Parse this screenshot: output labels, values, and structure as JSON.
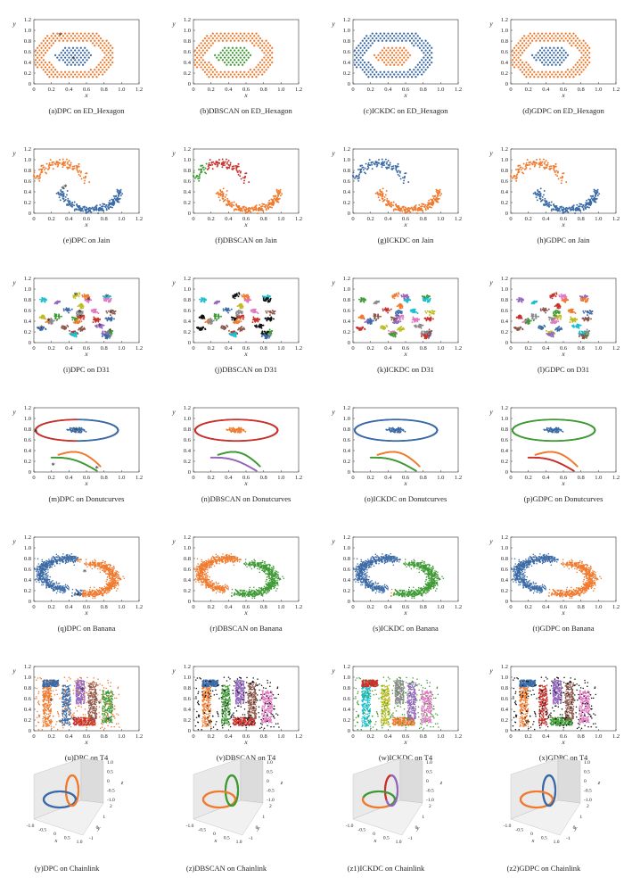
{
  "figure": {
    "rows": [
      {
        "dataset": "ED_Hexagon",
        "shape": "hexagon"
      },
      {
        "dataset": "Jain",
        "shape": "jain"
      },
      {
        "dataset": "D31",
        "shape": "d31"
      },
      {
        "dataset": "Donutcurves",
        "shape": "donut"
      },
      {
        "dataset": "Banana",
        "shape": "banana"
      },
      {
        "dataset": "T4",
        "shape": "t4"
      },
      {
        "dataset": "Chainlink",
        "shape": "chain"
      }
    ],
    "methods": [
      "DPC",
      "DBSCAN",
      "ICKDC",
      "GDPC"
    ],
    "axis_2d": {
      "xlabel": "x",
      "ylabel": "y",
      "xticks": [
        "0",
        "0.2",
        "0.4",
        "0.6",
        "0.8",
        "1.0",
        "1.2"
      ],
      "yticks": [
        "0",
        "0.2",
        "0.4",
        "0.6",
        "0.8",
        "1.0",
        "1.2"
      ],
      "range": [
        0,
        1.2
      ]
    },
    "axis_3d": {
      "xlabel": "x",
      "ylabel": "y",
      "zlabel": "z",
      "xticks": [
        "-1.0",
        "-0.5",
        "0",
        "0.5",
        "1.0"
      ],
      "yticks": [
        "-1",
        "0",
        "1",
        "2"
      ],
      "zticks": [
        "1.0",
        "0.5",
        "0",
        "-0.5",
        "-1.0"
      ]
    },
    "colors": {
      "blue": "#3b6aa6",
      "orange": "#f07a2e",
      "green": "#3f9a35",
      "red": "#c8322c",
      "purple": "#9467bd",
      "brown": "#8c564b",
      "pink": "#e377c2",
      "gray": "#8a8a8a",
      "olive": "#bcbd22",
      "cyan": "#17becf",
      "black": "#111111"
    }
  },
  "chart_data": [
    {
      "type": "scatter",
      "caption": "(a)DPC on ED_Hexagon",
      "dataset": "ED_Hexagon",
      "method": "DPC",
      "clusters": 2,
      "xlim": [
        0,
        1.2
      ],
      "ylim": [
        0,
        1.2
      ]
    },
    {
      "type": "scatter",
      "caption": "(b)DBSCAN on ED_Hexagon",
      "dataset": "ED_Hexagon",
      "method": "DBSCAN",
      "clusters": 2,
      "xlim": [
        0,
        1.2
      ],
      "ylim": [
        0,
        1.2
      ]
    },
    {
      "type": "scatter",
      "caption": "(c)ICKDC on ED_Hexagon",
      "dataset": "ED_Hexagon",
      "method": "ICKDC",
      "clusters": 2,
      "xlim": [
        0,
        1.2
      ],
      "ylim": [
        0,
        1.2
      ]
    },
    {
      "type": "scatter",
      "caption": "(d)GDPC on ED_Hexagon",
      "dataset": "ED_Hexagon",
      "method": "GDPC",
      "clusters": 2,
      "xlim": [
        0,
        1.2
      ],
      "ylim": [
        0,
        1.2
      ]
    },
    {
      "type": "scatter",
      "caption": "(e)DPC on Jain",
      "dataset": "Jain",
      "method": "DPC",
      "clusters": 2,
      "xlim": [
        0,
        1.2
      ],
      "ylim": [
        0,
        1.2
      ]
    },
    {
      "type": "scatter",
      "caption": "(f)DBSCAN on Jain",
      "dataset": "Jain",
      "method": "DBSCAN",
      "clusters": 3,
      "xlim": [
        0,
        1.2
      ],
      "ylim": [
        0,
        1.2
      ]
    },
    {
      "type": "scatter",
      "caption": "(g)ICKDC on Jain",
      "dataset": "Jain",
      "method": "ICKDC",
      "clusters": 2,
      "xlim": [
        0,
        1.2
      ],
      "ylim": [
        0,
        1.2
      ]
    },
    {
      "type": "scatter",
      "caption": "(h)GDPC on Jain",
      "dataset": "Jain",
      "method": "GDPC",
      "clusters": 2,
      "xlim": [
        0,
        1.2
      ],
      "ylim": [
        0,
        1.2
      ]
    },
    {
      "type": "scatter",
      "caption": "(i)DPC on D31",
      "dataset": "D31",
      "method": "DPC",
      "clusters": 31,
      "xlim": [
        0,
        1.2
      ],
      "ylim": [
        0,
        1.2
      ]
    },
    {
      "type": "scatter",
      "caption": "(j)DBSCAN on D31",
      "dataset": "D31",
      "method": "DBSCAN",
      "clusters": 31,
      "xlim": [
        0,
        1.2
      ],
      "ylim": [
        0,
        1.2
      ]
    },
    {
      "type": "scatter",
      "caption": "(k)ICKDC on D31",
      "dataset": "D31",
      "method": "ICKDC",
      "clusters": 31,
      "xlim": [
        0,
        1.2
      ],
      "ylim": [
        0,
        1.2
      ]
    },
    {
      "type": "scatter",
      "caption": "(l)GDPC on D31",
      "dataset": "D31",
      "method": "GDPC",
      "clusters": 31,
      "xlim": [
        0,
        1.2
      ],
      "ylim": [
        0,
        1.2
      ]
    },
    {
      "type": "scatter",
      "caption": "(m)DPC on Donutcurves",
      "dataset": "Donutcurves",
      "method": "DPC",
      "clusters": 4,
      "xlim": [
        0,
        1.2
      ],
      "ylim": [
        0,
        1.2
      ]
    },
    {
      "type": "scatter",
      "caption": "(n)DBSCAN on Donutcurves",
      "dataset": "Donutcurves",
      "method": "DBSCAN",
      "clusters": 4,
      "xlim": [
        0,
        1.2
      ],
      "ylim": [
        0,
        1.2
      ]
    },
    {
      "type": "scatter",
      "caption": "(o)ICKDC on Donutcurves",
      "dataset": "Donutcurves",
      "method": "ICKDC",
      "clusters": 4,
      "xlim": [
        0,
        1.2
      ],
      "ylim": [
        0,
        1.2
      ]
    },
    {
      "type": "scatter",
      "caption": "(p)GDPC on Donutcurves",
      "dataset": "Donutcurves",
      "method": "GDPC",
      "clusters": 4,
      "xlim": [
        0,
        1.2
      ],
      "ylim": [
        0,
        1.2
      ]
    },
    {
      "type": "scatter",
      "caption": "(q)DPC on Banana",
      "dataset": "Banana",
      "method": "DPC",
      "clusters": 2,
      "xlim": [
        0,
        1.2
      ],
      "ylim": [
        0,
        1.2
      ]
    },
    {
      "type": "scatter",
      "caption": "(r)DBSCAN on Banana",
      "dataset": "Banana",
      "method": "DBSCAN",
      "clusters": 2,
      "xlim": [
        0,
        1.2
      ],
      "ylim": [
        0,
        1.2
      ]
    },
    {
      "type": "scatter",
      "caption": "(s)ICKDC on Banana",
      "dataset": "Banana",
      "method": "ICKDC",
      "clusters": 3,
      "xlim": [
        0,
        1.2
      ],
      "ylim": [
        0,
        1.2
      ]
    },
    {
      "type": "scatter",
      "caption": "(t)GDPC on Banana",
      "dataset": "Banana",
      "method": "GDPC",
      "clusters": 2,
      "xlim": [
        0,
        1.2
      ],
      "ylim": [
        0,
        1.2
      ]
    },
    {
      "type": "scatter",
      "caption": "(u)DPC on T4",
      "dataset": "T4",
      "method": "DPC",
      "clusters": 6,
      "xlim": [
        0,
        1.2
      ],
      "ylim": [
        0,
        1.2
      ]
    },
    {
      "type": "scatter",
      "caption": "(v)DBSCAN on T4",
      "dataset": "T4",
      "method": "DBSCAN",
      "clusters": 6,
      "xlim": [
        0,
        1.2
      ],
      "ylim": [
        0,
        1.2
      ]
    },
    {
      "type": "scatter",
      "caption": "(w)ICKDC on T4",
      "dataset": "T4",
      "method": "ICKDC",
      "clusters": 6,
      "xlim": [
        0,
        1.2
      ],
      "ylim": [
        0,
        1.2
      ]
    },
    {
      "type": "scatter",
      "caption": "(x)GDPC on T4",
      "dataset": "T4",
      "method": "GDPC",
      "clusters": 6,
      "xlim": [
        0,
        1.2
      ],
      "ylim": [
        0,
        1.2
      ]
    },
    {
      "type": "scatter",
      "caption": "(y)DPC on Chainlink",
      "dataset": "Chainlink",
      "method": "DPC",
      "clusters": 2,
      "projection": "3d"
    },
    {
      "type": "scatter",
      "caption": "(z)DBSCAN on Chainlink",
      "dataset": "Chainlink",
      "method": "DBSCAN",
      "clusters": 2,
      "projection": "3d"
    },
    {
      "type": "scatter",
      "caption": "(z1)ICKDC on Chainlink",
      "dataset": "Chainlink",
      "method": "ICKDC",
      "clusters": 4,
      "projection": "3d"
    },
    {
      "type": "scatter",
      "caption": "(z2)GDPC on Chainlink",
      "dataset": "Chainlink",
      "method": "GDPC",
      "clusters": 2,
      "projection": "3d"
    }
  ]
}
